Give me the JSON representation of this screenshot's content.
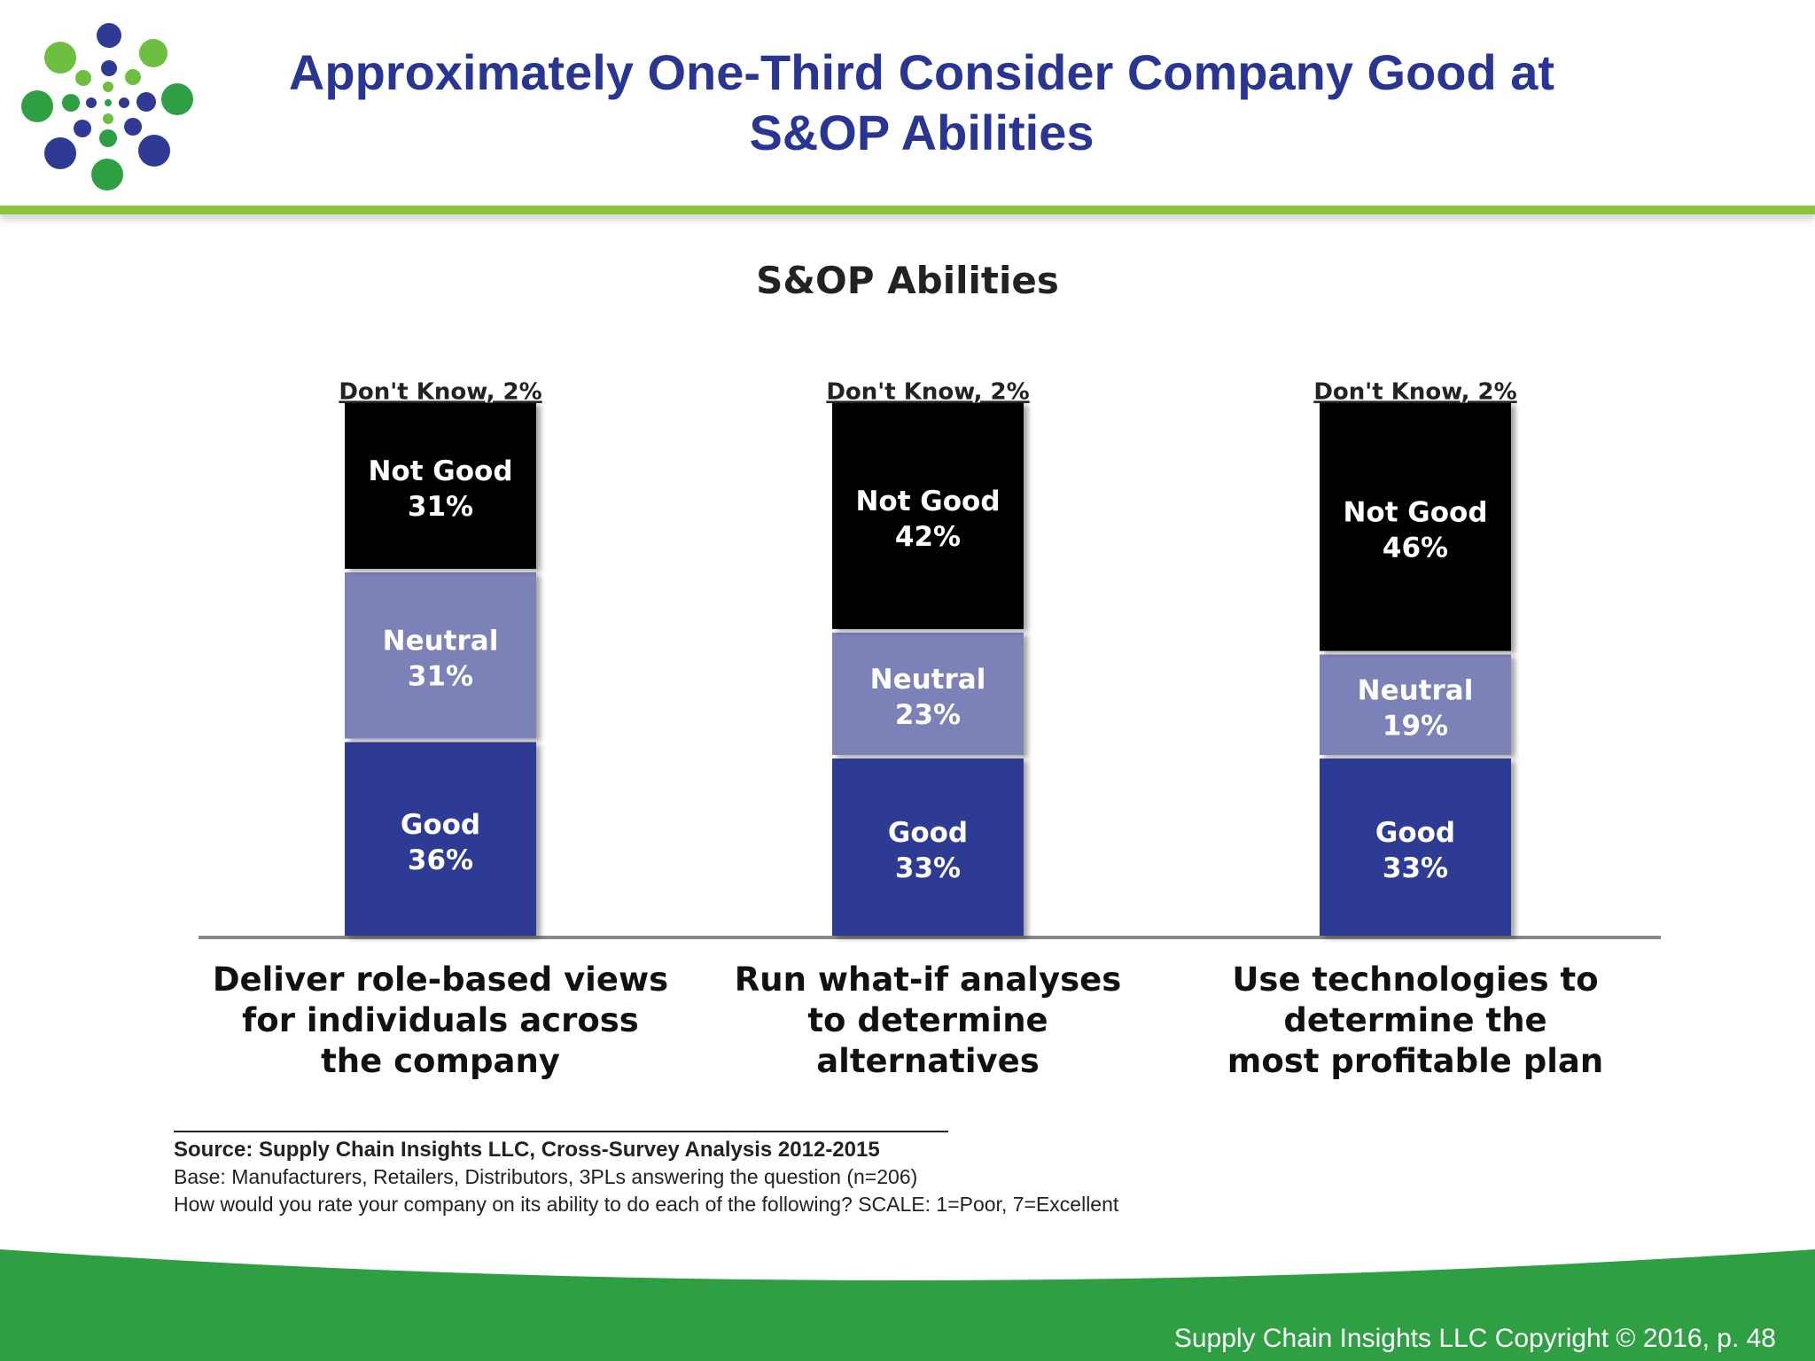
{
  "slide": {
    "title": "Approximately One-Third Consider Company Good at S&OP Abilities",
    "footer": "Supply Chain Insights LLC Copyright © 2016, p. 48"
  },
  "colors": {
    "title": "#283593",
    "header_rule": "#8cc63f",
    "footer_band": "#2ea043",
    "good": "#2e3a94",
    "neutral": "#7b82b8",
    "not_good": "#000000"
  },
  "source": {
    "source_line": "Source:  Supply Chain Insights LLC, Cross-Survey Analysis 2012-2015",
    "base_line": "Base:  Manufacturers, Retailers, Distributors, 3PLs answering the question (n=206)",
    "question_line": "How would you rate your company on its ability to do each of the following? SCALE: 1=Poor, 7=Excellent"
  },
  "chart_data": {
    "type": "bar",
    "stacked": true,
    "title": "S&OP Abilities",
    "categories": [
      [
        "Deliver role-based views",
        "for individuals across",
        "the company"
      ],
      [
        "Run what-if analyses",
        "to determine",
        "alternatives"
      ],
      [
        "Use technologies to",
        "determine the",
        "most profitable plan"
      ]
    ],
    "series": [
      {
        "name": "Good",
        "values": [
          36,
          33,
          33
        ],
        "color": "#2e3a94"
      },
      {
        "name": "Neutral",
        "values": [
          31,
          23,
          19
        ],
        "color": "#7b82b8"
      },
      {
        "name": "Not Good",
        "values": [
          31,
          42,
          46
        ],
        "color": "#000000"
      },
      {
        "name": "Don't Know",
        "values": [
          2,
          2,
          2
        ],
        "color": "#ffffff"
      }
    ],
    "unit": "%",
    "ylim": [
      0,
      100
    ]
  }
}
